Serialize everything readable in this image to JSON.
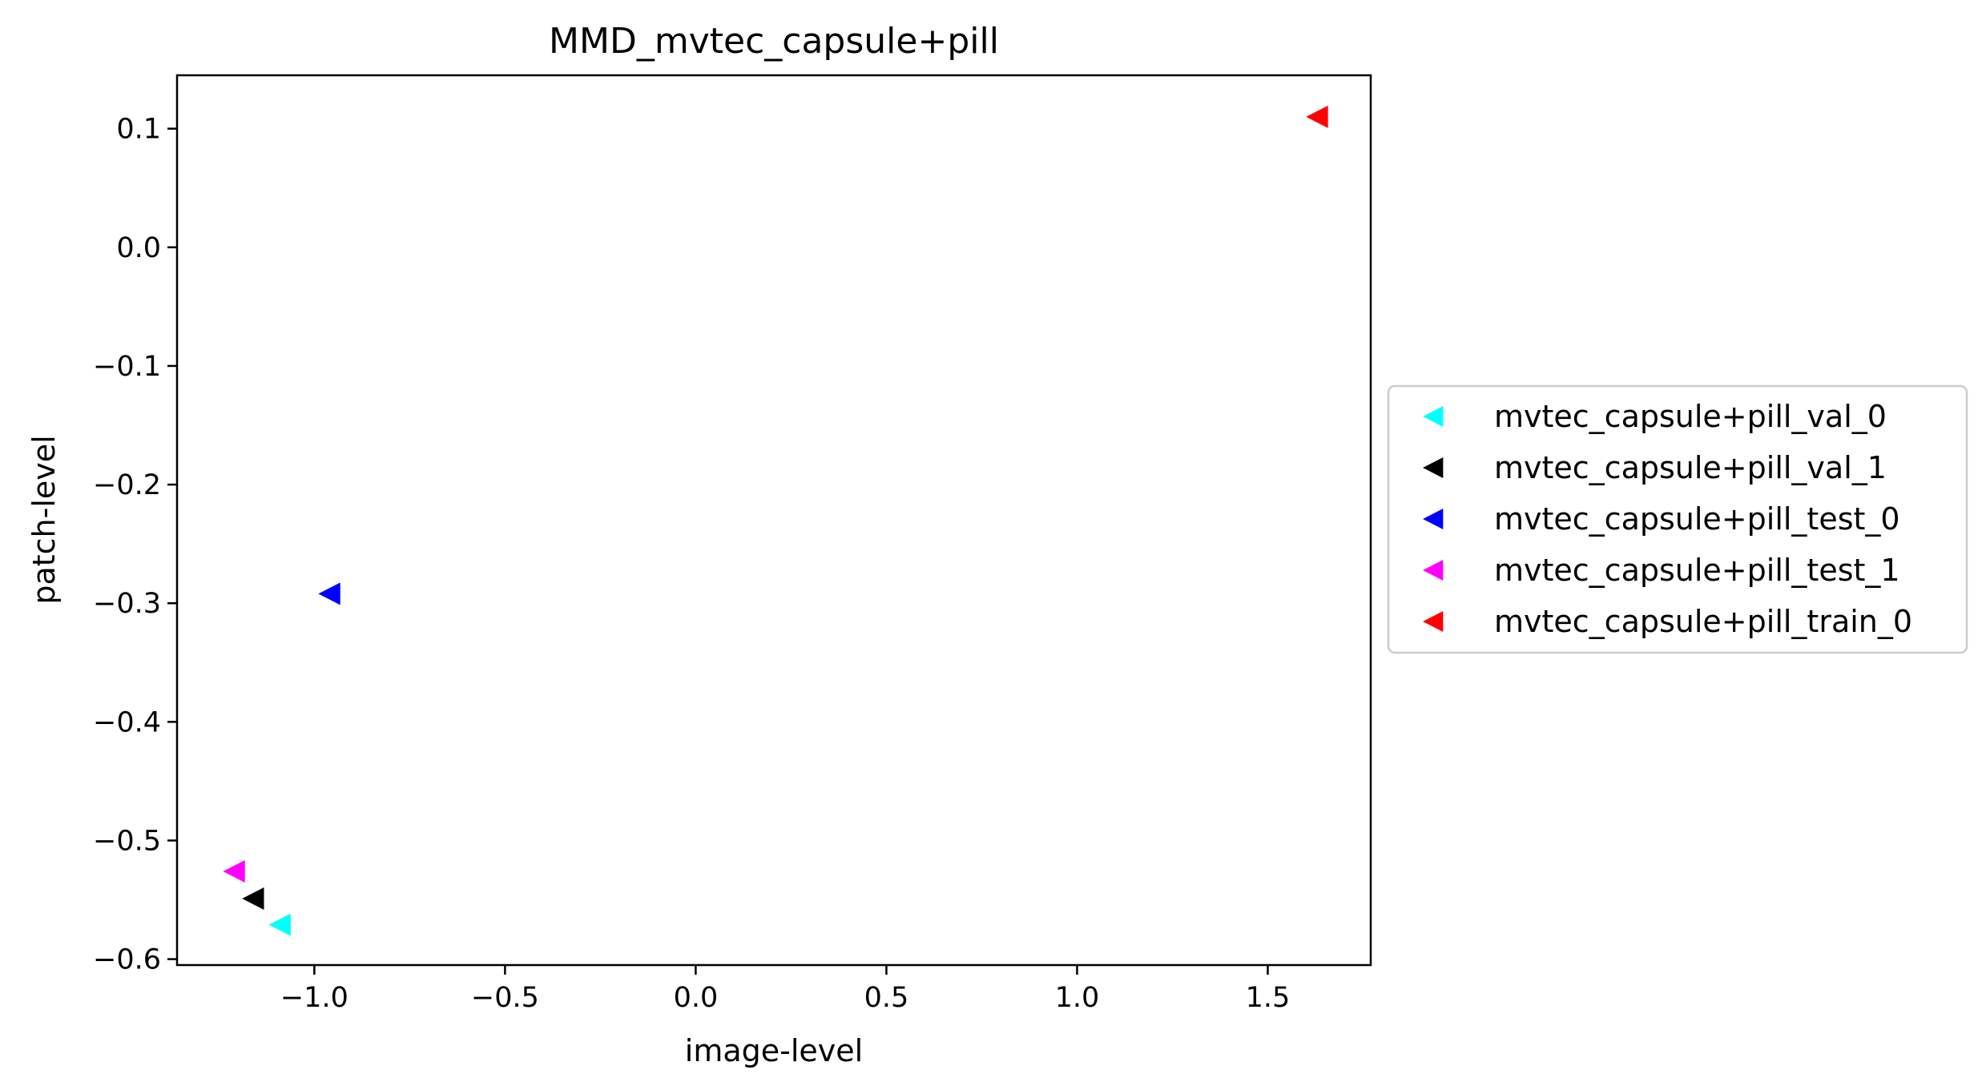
{
  "chart_data": {
    "type": "scatter",
    "title": "MMD_mvtec_capsule+pill",
    "xlabel": "image-level",
    "ylabel": "patch-level",
    "xlim": [
      -1.36,
      1.77
    ],
    "ylim": [
      -0.605,
      0.145
    ],
    "xticks": [
      -1.0,
      -0.5,
      0.0,
      0.5,
      1.0,
      1.5
    ],
    "xtick_labels": [
      "−1.0",
      "−0.5",
      "0.0",
      "0.5",
      "1.0",
      "1.5"
    ],
    "yticks": [
      0.1,
      0.0,
      -0.1,
      -0.2,
      -0.3,
      -0.4,
      -0.5,
      -0.6
    ],
    "ytick_labels": [
      "0.1",
      "0.0",
      "−0.1",
      "−0.2",
      "−0.3",
      "−0.4",
      "−0.5",
      "−0.6"
    ],
    "grid": false,
    "marker": "triangle-left",
    "legend_position": "outside-right",
    "series": [
      {
        "name": "mvtec_capsule+pill_val_0",
        "color": "#00ffff",
        "x": [
          -1.09
        ],
        "y": [
          -0.571
        ]
      },
      {
        "name": "mvtec_capsule+pill_val_1",
        "color": "#000000",
        "x": [
          -1.16
        ],
        "y": [
          -0.549
        ]
      },
      {
        "name": "mvtec_capsule+pill_test_0",
        "color": "#0000ff",
        "x": [
          -0.96
        ],
        "y": [
          -0.292
        ]
      },
      {
        "name": "mvtec_capsule+pill_test_1",
        "color": "#ff00ff",
        "x": [
          -1.21
        ],
        "y": [
          -0.526
        ]
      },
      {
        "name": "mvtec_capsule+pill_train_0",
        "color": "#ff0000",
        "x": [
          1.63
        ],
        "y": [
          0.11
        ]
      }
    ]
  }
}
